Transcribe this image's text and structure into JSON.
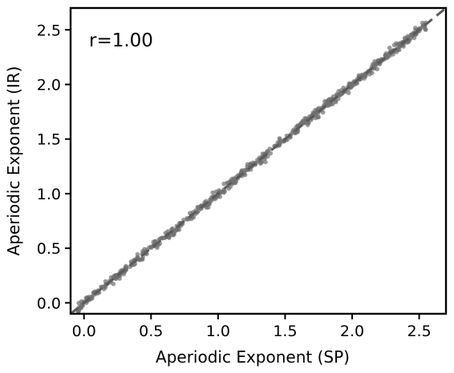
{
  "chart_data": {
    "type": "scatter",
    "title": "",
    "xlabel": "Aperiodic Exponent (SP)",
    "ylabel": "Aperiodic Exponent (IR)",
    "xlim": [
      -0.1,
      2.7
    ],
    "ylim": [
      -0.1,
      2.7
    ],
    "xticks": [
      "0.0",
      "0.5",
      "1.0",
      "1.5",
      "2.0",
      "2.5"
    ],
    "yticks": [
      "0.0",
      "0.5",
      "1.0",
      "1.5",
      "2.0",
      "2.5"
    ],
    "annotation": "r=1.00",
    "grid": false,
    "legend": "none",
    "reference_line": {
      "style": "dashed",
      "label": "",
      "x": [
        -0.1,
        2.7
      ],
      "y": [
        -0.1,
        2.7
      ]
    },
    "series": [
      {
        "n_points": 600,
        "x_range": [
          -0.05,
          2.55
        ],
        "residual_spread": 0.03,
        "color": "#6f6f6f"
      }
    ],
    "colors": {
      "points": "#6f6f6f",
      "reference_line": "#5a5a5a",
      "axes": "#000000"
    }
  }
}
